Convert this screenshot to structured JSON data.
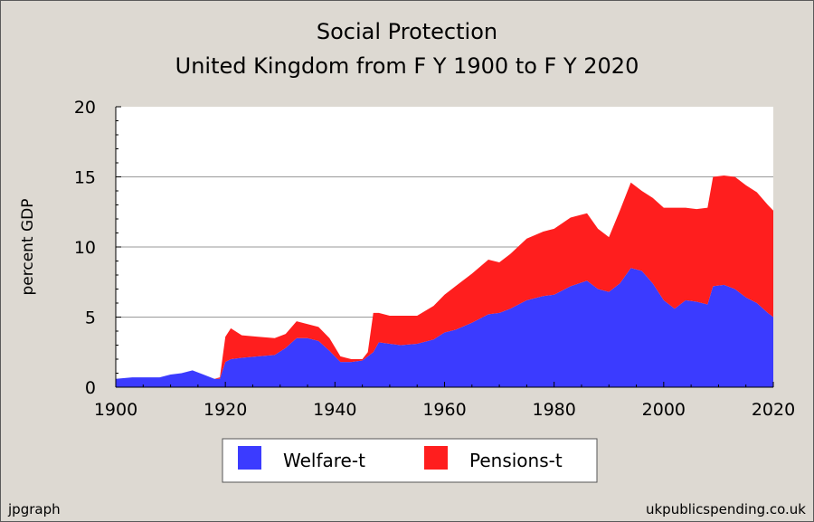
{
  "chart_data": {
    "type": "area",
    "stacked": true,
    "title": "Social Protection",
    "subtitle": "United Kingdom from F Y 1900 to F Y 2020",
    "xlabel": "",
    "ylabel": "percent GDP",
    "xlim": [
      1900,
      2020
    ],
    "ylim": [
      0,
      20
    ],
    "x_ticks": [
      "1900",
      "1920",
      "1940",
      "1960",
      "1980",
      "2000",
      "2020"
    ],
    "y_ticks": [
      "0",
      "5",
      "10",
      "15",
      "20"
    ],
    "grid": true,
    "legend_position": "bottom",
    "footer_left": "jpgraph",
    "footer_right": "ukpublicspending.co.uk",
    "x": [
      1900,
      1903,
      1905,
      1908,
      1910,
      1912,
      1914,
      1916,
      1918,
      1919,
      1920,
      1921,
      1923,
      1926,
      1929,
      1931,
      1933,
      1935,
      1937,
      1939,
      1941,
      1943,
      1945,
      1946,
      1947,
      1948,
      1950,
      1952,
      1955,
      1958,
      1960,
      1962,
      1965,
      1968,
      1970,
      1972,
      1975,
      1978,
      1980,
      1983,
      1986,
      1988,
      1990,
      1992,
      1994,
      1996,
      1998,
      2000,
      2002,
      2004,
      2006,
      2008,
      2009,
      2011,
      2013,
      2015,
      2017,
      2019,
      2020
    ],
    "series": [
      {
        "name": "Welfare-t",
        "color": "#3b3bff",
        "values": [
          0.6,
          0.7,
          0.7,
          0.7,
          0.9,
          1.0,
          1.2,
          0.9,
          0.6,
          0.6,
          1.8,
          2.0,
          2.1,
          2.2,
          2.3,
          2.8,
          3.5,
          3.5,
          3.3,
          2.6,
          1.8,
          1.8,
          1.9,
          2.2,
          2.5,
          3.2,
          3.1,
          3.0,
          3.1,
          3.4,
          3.9,
          4.1,
          4.6,
          5.2,
          5.3,
          5.6,
          6.2,
          6.5,
          6.6,
          7.2,
          7.6,
          7.0,
          6.8,
          7.4,
          8.5,
          8.3,
          7.4,
          6.2,
          5.6,
          6.2,
          6.1,
          5.9,
          7.2,
          7.3,
          7.0,
          6.4,
          6.0,
          5.3,
          5.0
        ]
      },
      {
        "name": "Pensions-t",
        "color": "#ff1e1e",
        "values": [
          0,
          0,
          0,
          0,
          0,
          0,
          0,
          0,
          0,
          0.1,
          1.8,
          2.2,
          1.6,
          1.4,
          1.2,
          1.0,
          1.2,
          1.0,
          1.0,
          0.9,
          0.4,
          0.2,
          0.1,
          0.3,
          2.8,
          2.1,
          2.0,
          2.1,
          2.0,
          2.4,
          2.7,
          3.1,
          3.5,
          3.9,
          3.6,
          3.9,
          4.4,
          4.6,
          4.7,
          4.9,
          4.8,
          4.3,
          3.9,
          5.2,
          6.1,
          5.7,
          6.1,
          6.6,
          7.2,
          6.6,
          6.6,
          6.9,
          7.8,
          7.8,
          8.0,
          8.0,
          7.9,
          7.7,
          7.6
        ]
      }
    ]
  }
}
